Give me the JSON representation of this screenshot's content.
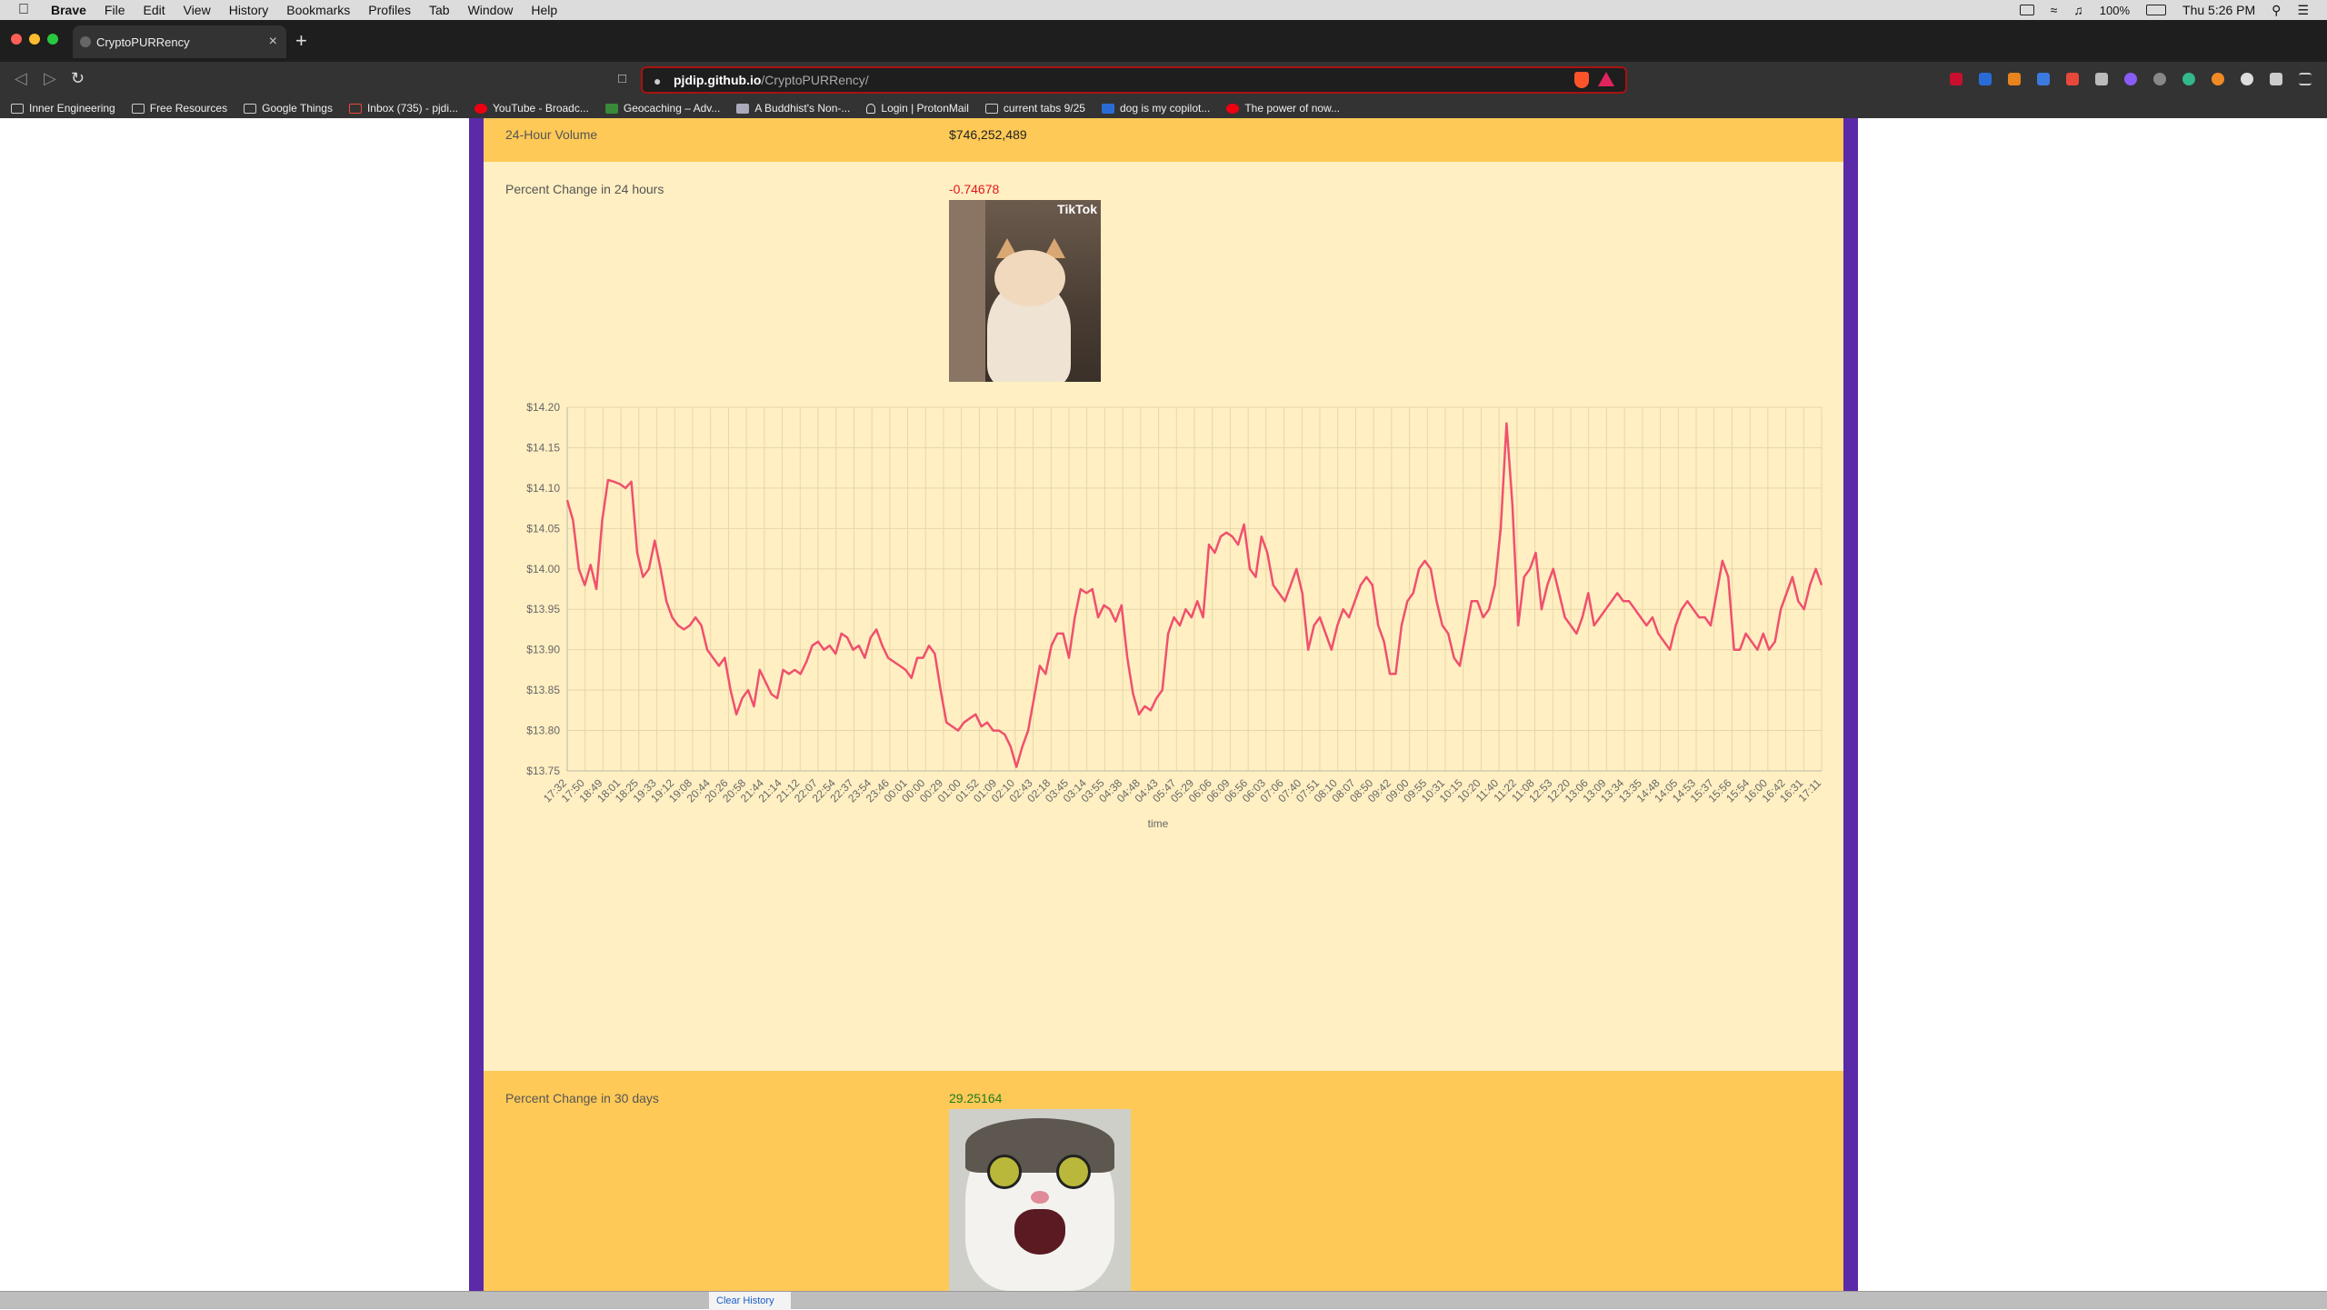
{
  "menubar": {
    "app": "Brave",
    "items": [
      "File",
      "Edit",
      "View",
      "History",
      "Bookmarks",
      "Profiles",
      "Tab",
      "Window",
      "Help"
    ],
    "battery": "100%",
    "clock": "Thu 5:26 PM"
  },
  "tab": {
    "title": "CryptoPURRency",
    "close": "×",
    "new": "+"
  },
  "address": {
    "host": "pjdip.github.io",
    "path": "/CryptoPURRency/"
  },
  "bookmarks": [
    "Inner Engineering",
    "Free Resources",
    "Google Things",
    "Inbox (735) - pjdi...",
    "YouTube - Broadc...",
    "Geocaching – Adv...",
    "A Buddhist's Non-...",
    "Login | ProtonMail",
    "current tabs 9/25",
    "dog is my copilot...",
    "The power of now..."
  ],
  "rows": {
    "volume": {
      "label": "24-Hour Volume",
      "value": "$746,252,489"
    },
    "change24": {
      "label": "Percent Change in 24 hours",
      "value": "-0.74678",
      "image_text": "TikTok"
    },
    "change30": {
      "label": "Percent Change in 30 days",
      "value": "29.25164"
    }
  },
  "colors": {
    "orange": "#ffc957",
    "cream": "#ffefc2",
    "purple": "#5b2aa8",
    "line": "#f0506e",
    "negative": "#e3161b",
    "positive": "#1f7a1f"
  },
  "behind": {
    "button": "Clear History"
  },
  "chart_data": {
    "type": "line",
    "xlabel": "time",
    "ylim": [
      13.75,
      14.2
    ],
    "yticks": [
      "$14.20",
      "$14.15",
      "$14.10",
      "$14.05",
      "$14.00",
      "$13.95",
      "$13.90",
      "$13.85",
      "$13.80",
      "$13.75"
    ],
    "xticks": [
      "17:32",
      "17:50",
      "18:49",
      "18:01",
      "18:25",
      "19:33",
      "19:12",
      "19:08",
      "20:44",
      "20:26",
      "20:58",
      "21:44",
      "21:14",
      "21:12",
      "22:07",
      "22:54",
      "22:37",
      "23:54",
      "23:46",
      "00:01",
      "00:00",
      "00:29",
      "01:00",
      "01:52",
      "01:09",
      "02:10",
      "02:43",
      "02:18",
      "03:45",
      "03:14",
      "03:55",
      "04:38",
      "04:48",
      "04:43",
      "05:47",
      "05:29",
      "06:06",
      "06:09",
      "06:56",
      "06:03",
      "07:06",
      "07:40",
      "07:51",
      "08:10",
      "08:07",
      "08:50",
      "09:42",
      "09:00",
      "09:55",
      "10:31",
      "10:15",
      "10:20",
      "11:40",
      "11:22",
      "11:08",
      "12:53",
      "12:20",
      "13:06",
      "13:09",
      "13:34",
      "13:35",
      "14:48",
      "14:05",
      "14:53",
      "15:37",
      "15:56",
      "15:54",
      "16:00",
      "16:42",
      "16:31",
      "17:11"
    ],
    "grid": true,
    "series": [
      {
        "values": [
          14.085,
          14.06,
          14.0,
          13.98,
          14.005,
          13.975,
          14.06,
          14.11,
          14.108,
          14.105,
          14.1,
          14.108,
          14.02,
          13.99,
          14.0,
          14.035,
          14.0,
          13.96,
          13.94,
          13.93,
          13.925,
          13.93,
          13.94,
          13.93,
          13.9,
          13.89,
          13.88,
          13.89,
          13.85,
          13.82,
          13.84,
          13.85,
          13.83,
          13.875,
          13.86,
          13.845,
          13.84,
          13.875,
          13.87,
          13.875,
          13.87,
          13.885,
          13.905,
          13.91,
          13.9,
          13.905,
          13.895,
          13.92,
          13.915,
          13.9,
          13.905,
          13.89,
          13.915,
          13.925,
          13.905,
          13.89,
          13.885,
          13.88,
          13.875,
          13.865,
          13.89,
          13.89,
          13.905,
          13.895,
          13.85,
          13.81,
          13.805,
          13.8,
          13.81,
          13.815,
          13.82,
          13.805,
          13.81,
          13.8,
          13.8,
          13.795,
          13.78,
          13.755,
          13.78,
          13.8,
          13.84,
          13.88,
          13.87,
          13.905,
          13.92,
          13.92,
          13.89,
          13.94,
          13.975,
          13.97,
          13.975,
          13.94,
          13.955,
          13.95,
          13.935,
          13.955,
          13.89,
          13.845,
          13.82,
          13.83,
          13.825,
          13.84,
          13.85,
          13.92,
          13.94,
          13.93,
          13.95,
          13.94,
          13.96,
          13.94,
          14.03,
          14.02,
          14.04,
          14.045,
          14.04,
          14.03,
          14.055,
          14.0,
          13.99,
          14.04,
          14.02,
          13.98,
          13.97,
          13.96,
          13.98,
          14.0,
          13.97,
          13.9,
          13.93,
          13.94,
          13.92,
          13.9,
          13.93,
          13.95,
          13.94,
          13.96,
          13.98,
          13.99,
          13.98,
          13.93,
          13.91,
          13.87,
          13.87,
          13.93,
          13.96,
          13.97,
          14.0,
          14.01,
          14.0,
          13.96,
          13.93,
          13.92,
          13.89,
          13.88,
          13.92,
          13.96,
          13.96,
          13.94,
          13.95,
          13.98,
          14.05,
          14.18,
          14.08,
          13.93,
          13.99,
          14.0,
          14.02,
          13.95,
          13.98,
          14.0,
          13.97,
          13.94,
          13.93,
          13.92,
          13.94,
          13.97,
          13.93,
          13.94,
          13.95,
          13.96,
          13.97,
          13.96,
          13.96,
          13.95,
          13.94,
          13.93,
          13.94,
          13.92,
          13.91,
          13.9,
          13.93,
          13.95,
          13.96,
          13.95,
          13.94,
          13.94,
          13.93,
          13.97,
          14.01,
          13.99,
          13.9,
          13.9,
          13.92,
          13.91,
          13.9,
          13.92,
          13.9,
          13.91,
          13.95,
          13.97,
          13.99,
          13.96,
          13.95,
          13.98,
          14.0,
          13.98
        ]
      }
    ]
  }
}
